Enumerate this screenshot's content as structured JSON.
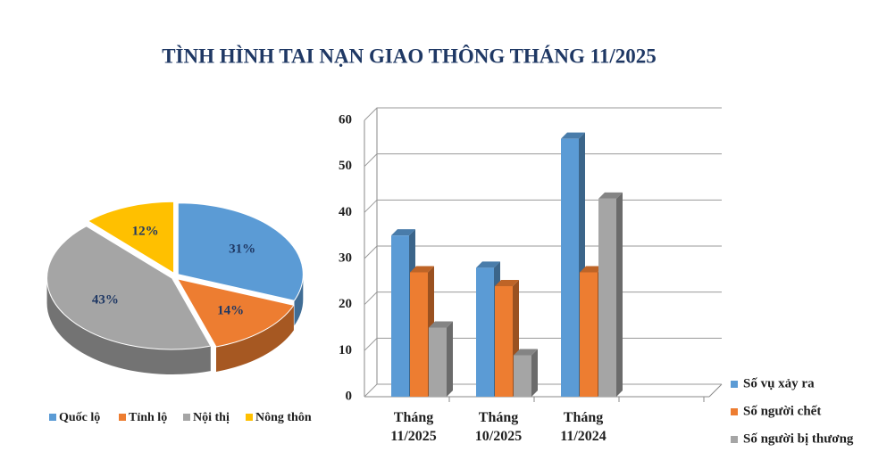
{
  "title": "TÌNH HÌNH TAI NẠN GIAO THÔNG THÁNG 11/2025",
  "chart_data": [
    {
      "type": "pie",
      "categories": [
        "Quốc lộ",
        "Tỉnh lộ",
        "Nội thị",
        "Nông thôn"
      ],
      "values": [
        31,
        14,
        43,
        12
      ],
      "value_labels": [
        "31%",
        "14%",
        "43%",
        "12%"
      ],
      "colors": [
        "#5b9bd5",
        "#ed7d31",
        "#a5a5a5",
        "#ffc000"
      ]
    },
    {
      "type": "bar",
      "categories": [
        "Tháng 11/2025",
        "Tháng 10/2025",
        "Tháng 11/2024"
      ],
      "series": [
        {
          "name": "Số vụ xảy ra",
          "color": "#5b9bd5",
          "values": [
            35,
            28,
            56
          ]
        },
        {
          "name": "Số người chết",
          "color": "#ed7d31",
          "values": [
            27,
            24,
            27
          ]
        },
        {
          "name": "Số người bị thương",
          "color": "#a5a5a5",
          "values": [
            15,
            9,
            43
          ]
        }
      ],
      "ylim": [
        0,
        60
      ],
      "yticks": [
        0,
        10,
        20,
        30,
        40,
        50,
        60
      ],
      "grid": true
    }
  ]
}
